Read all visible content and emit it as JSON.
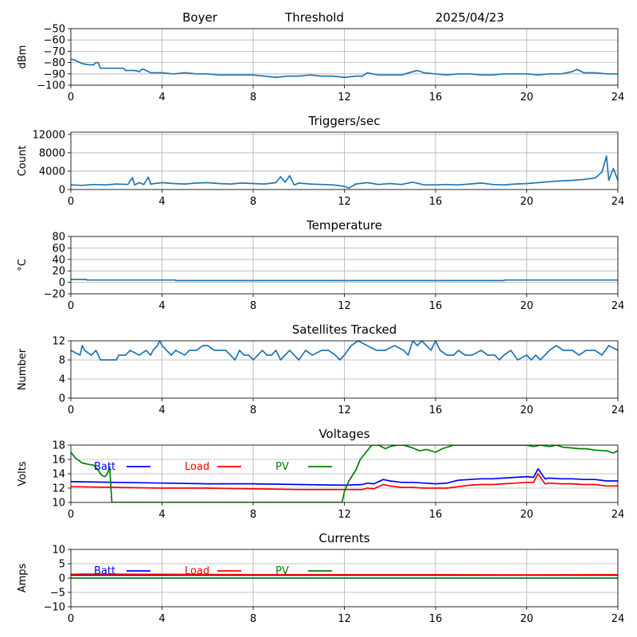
{
  "header": {
    "site": "Boyer",
    "label": "Threshold",
    "date": "2025/04/23"
  },
  "chart_data": [
    {
      "id": "threshold",
      "type": "line",
      "title": "",
      "ylabel": "dBm",
      "xlim": [
        0,
        24
      ],
      "ylim": [
        -100,
        -50
      ],
      "xticks": [
        "0",
        "4",
        "8",
        "12",
        "16",
        "20",
        "24"
      ],
      "yticks": [
        "−100",
        "−90",
        "−80",
        "−70",
        "−60",
        "−50"
      ],
      "grid": true,
      "series": [
        {
          "name": "",
          "color": "#1f77b4",
          "x": [
            0,
            0.2,
            0.5,
            0.8,
            1.0,
            1.1,
            1.2,
            1.3,
            2.0,
            2.3,
            2.4,
            2.8,
            3.0,
            3.1,
            3.2,
            3.5,
            3.8,
            4.0,
            4.5,
            5.0,
            5.5,
            6.0,
            6.5,
            7.0,
            7.5,
            8.0,
            8.5,
            9.0,
            9.5,
            10.0,
            10.5,
            11.0,
            11.5,
            12.0,
            12.5,
            12.8,
            13.0,
            13.5,
            14.0,
            14.5,
            15.0,
            15.2,
            15.5,
            16.0,
            16.5,
            17.0,
            17.5,
            18.0,
            18.5,
            19.0,
            19.5,
            20.0,
            20.5,
            21.0,
            21.5,
            22.0,
            22.2,
            22.5,
            23.0,
            23.5,
            24.0
          ],
          "y": [
            -77,
            -78,
            -81,
            -82,
            -82,
            -80,
            -80,
            -85,
            -85,
            -85,
            -87,
            -87,
            -88,
            -86,
            -86,
            -89,
            -89,
            -89,
            -90,
            -89,
            -90,
            -90,
            -91,
            -91,
            -91,
            -91,
            -92,
            -93,
            -92,
            -92,
            -91,
            -92,
            -92,
            -93,
            -92,
            -92,
            -89,
            -91,
            -91,
            -91,
            -88,
            -87,
            -89,
            -90,
            -91,
            -90,
            -90,
            -91,
            -91,
            -90,
            -90,
            -90,
            -91,
            -90,
            -90,
            -88,
            -86,
            -89,
            -89,
            -90,
            -90
          ]
        }
      ],
      "legend": []
    },
    {
      "id": "triggers",
      "type": "line",
      "title": "Triggers/sec",
      "ylabel": "Count",
      "xlim": [
        0,
        24
      ],
      "ylim": [
        0,
        12500
      ],
      "xticks": [
        "0",
        "4",
        "8",
        "12",
        "16",
        "20",
        "24"
      ],
      "yticks": [
        "0",
        "4000",
        "8000",
        "12000"
      ],
      "grid": true,
      "series": [
        {
          "name": "",
          "color": "#1f77b4",
          "x": [
            0,
            0.5,
            1.0,
            1.5,
            2.0,
            2.5,
            2.7,
            2.8,
            3.0,
            3.2,
            3.4,
            3.5,
            4.0,
            4.5,
            5.0,
            5.5,
            6.0,
            6.5,
            7.0,
            7.5,
            8.0,
            8.5,
            9.0,
            9.2,
            9.4,
            9.6,
            9.8,
            10.0,
            10.5,
            11.0,
            11.5,
            12.0,
            12.2,
            12.5,
            13.0,
            13.5,
            14.0,
            14.5,
            15.0,
            15.5,
            16.0,
            16.5,
            17.0,
            17.5,
            18.0,
            18.5,
            19.0,
            19.5,
            20.0,
            20.5,
            21.0,
            21.5,
            22.0,
            22.5,
            23.0,
            23.3,
            23.5,
            23.6,
            23.8,
            24.0
          ],
          "y": [
            1000,
            900,
            1100,
            1000,
            1200,
            1100,
            2600,
            1000,
            1500,
            1100,
            2700,
            1200,
            1500,
            1300,
            1200,
            1400,
            1500,
            1300,
            1200,
            1400,
            1300,
            1200,
            1500,
            2800,
            1600,
            3000,
            1000,
            1400,
            1200,
            1100,
            1000,
            700,
            300,
            1200,
            1500,
            1100,
            1300,
            1100,
            1600,
            1000,
            1000,
            1100,
            1000,
            1200,
            1400,
            1100,
            1000,
            1200,
            1300,
            1500,
            1700,
            1900,
            2000,
            2200,
            2500,
            3800,
            7300,
            2000,
            4600,
            2000
          ]
        }
      ],
      "legend": []
    },
    {
      "id": "temperature",
      "type": "line",
      "title": "Temperature",
      "ylabel": "°C",
      "xlim": [
        0,
        24
      ],
      "ylim": [
        -20,
        80
      ],
      "xticks": [
        "0",
        "4",
        "8",
        "12",
        "16",
        "20",
        "24"
      ],
      "yticks": [
        "−20",
        "0",
        "20",
        "40",
        "60",
        "80"
      ],
      "grid": true,
      "series": [
        {
          "name": "",
          "color": "#1f77b4",
          "x": [
            0,
            0.7,
            0.7,
            4.6,
            4.6,
            19.0,
            19.0,
            24.0
          ],
          "y": [
            5,
            5,
            4,
            4,
            3,
            3,
            4,
            4
          ]
        }
      ],
      "legend": []
    },
    {
      "id": "satellites",
      "type": "line",
      "title": "Satellites Tracked",
      "ylabel": "Number",
      "xlim": [
        0,
        24
      ],
      "ylim": [
        0,
        12
      ],
      "xticks": [
        "0",
        "4",
        "8",
        "12",
        "16",
        "20",
        "24"
      ],
      "yticks": [
        "0",
        "4",
        "8",
        "12"
      ],
      "grid": true,
      "series": [
        {
          "name": "",
          "color": "#1f77b4",
          "x": [
            0,
            0.4,
            0.5,
            0.6,
            0.9,
            1.1,
            1.3,
            2.0,
            2.1,
            2.4,
            2.6,
            3.0,
            3.3,
            3.5,
            3.6,
            3.8,
            3.9,
            4.0,
            4.2,
            4.4,
            4.6,
            5.0,
            5.2,
            5.5,
            5.8,
            6.0,
            6.3,
            6.8,
            7.0,
            7.2,
            7.4,
            7.6,
            7.8,
            8.0,
            8.2,
            8.4,
            8.6,
            8.8,
            9.0,
            9.2,
            9.4,
            9.6,
            9.8,
            10.0,
            10.3,
            10.6,
            11.0,
            11.3,
            11.6,
            11.8,
            12.0,
            12.3,
            12.6,
            13.0,
            13.4,
            13.8,
            14.2,
            14.6,
            14.8,
            15.0,
            15.2,
            15.4,
            15.6,
            15.8,
            16.0,
            16.2,
            16.5,
            16.8,
            17.0,
            17.3,
            17.6,
            18.0,
            18.3,
            18.6,
            18.8,
            19.0,
            19.3,
            19.6,
            20.0,
            20.2,
            20.4,
            20.6,
            21.0,
            21.3,
            21.6,
            22.0,
            22.3,
            22.6,
            23.0,
            23.3,
            23.6,
            24.0
          ],
          "y": [
            10,
            9,
            11,
            10,
            9,
            10,
            8,
            8,
            9,
            9,
            10,
            9,
            10,
            9,
            10,
            11,
            12,
            11,
            10,
            9,
            10,
            9,
            10,
            10,
            11,
            11,
            10,
            10,
            9,
            8,
            10,
            9,
            9,
            8,
            9,
            10,
            9,
            9,
            10,
            8,
            9,
            10,
            9,
            8,
            10,
            9,
            10,
            10,
            9,
            8,
            9,
            11,
            12,
            11,
            10,
            10,
            11,
            10,
            9,
            12,
            11,
            12,
            11,
            10,
            12,
            10,
            9,
            9,
            10,
            9,
            9,
            10,
            9,
            9,
            8,
            9,
            10,
            8,
            9,
            8,
            9,
            8,
            10,
            11,
            10,
            10,
            9,
            10,
            10,
            9,
            11,
            10
          ]
        }
      ],
      "legend": []
    },
    {
      "id": "voltages",
      "type": "line",
      "title": "Voltages",
      "ylabel": "Volts",
      "xlim": [
        0,
        24
      ],
      "ylim": [
        10,
        18
      ],
      "xticks": [
        "0",
        "4",
        "8",
        "12",
        "16",
        "20",
        "24"
      ],
      "yticks": [
        "10",
        "12",
        "14",
        "16",
        "18"
      ],
      "grid": true,
      "series": [
        {
          "name": "Batt",
          "color": "#0000ff",
          "x": [
            0,
            2,
            4,
            6,
            8,
            10,
            12,
            12.8,
            13.0,
            13.3,
            13.7,
            14.0,
            14.5,
            15.0,
            15.5,
            16.0,
            16.5,
            17.0,
            17.5,
            18.0,
            18.5,
            19.0,
            19.5,
            20.0,
            20.3,
            20.5,
            20.8,
            21.0,
            21.5,
            22.0,
            22.5,
            23.0,
            23.5,
            24.0
          ],
          "y": [
            12.9,
            12.8,
            12.7,
            12.6,
            12.6,
            12.5,
            12.4,
            12.5,
            12.7,
            12.6,
            13.2,
            13.0,
            12.8,
            12.8,
            12.7,
            12.6,
            12.7,
            13.1,
            13.2,
            13.3,
            13.3,
            13.4,
            13.5,
            13.6,
            13.5,
            14.7,
            13.3,
            13.4,
            13.3,
            13.3,
            13.2,
            13.2,
            13.0,
            13.0
          ]
        },
        {
          "name": "Load",
          "color": "#ff0000",
          "x": [
            0,
            2,
            4,
            6,
            8,
            10,
            12,
            12.8,
            13.0,
            13.3,
            13.7,
            14.0,
            14.5,
            15.0,
            15.5,
            16.0,
            16.5,
            17.0,
            17.5,
            18.0,
            18.5,
            19.0,
            19.5,
            20.0,
            20.3,
            20.5,
            20.8,
            21.0,
            21.5,
            22.0,
            22.5,
            23.0,
            23.5,
            24.0
          ],
          "y": [
            12.2,
            12.1,
            12.0,
            12.0,
            11.9,
            11.8,
            11.8,
            11.8,
            12.0,
            11.9,
            12.5,
            12.3,
            12.1,
            12.1,
            12.0,
            12.0,
            12.0,
            12.2,
            12.4,
            12.5,
            12.5,
            12.6,
            12.7,
            12.8,
            12.8,
            14.0,
            12.6,
            12.7,
            12.6,
            12.6,
            12.5,
            12.5,
            12.3,
            12.3
          ]
        },
        {
          "name": "PV",
          "color": "#008000",
          "x": [
            0,
            0.2,
            0.5,
            0.8,
            1.0,
            1.2,
            1.3,
            1.4,
            1.5,
            1.6,
            1.7,
            1.8,
            11.9,
            12.0,
            12.2,
            12.5,
            12.7,
            13.0,
            13.2,
            13.5,
            13.8,
            14.0,
            14.3,
            14.6,
            15.0,
            15.3,
            15.6,
            16.0,
            16.3,
            16.6,
            16.8,
            20.0,
            20.3,
            20.6,
            21.0,
            21.3,
            21.6,
            22.0,
            22.3,
            22.6,
            23.0,
            23.5,
            23.8,
            24.0
          ],
          "y": [
            17.0,
            16.2,
            15.5,
            15.3,
            15.2,
            14.5,
            14.0,
            13.7,
            13.6,
            14.0,
            15.0,
            9.6,
            9.6,
            11.5,
            13.0,
            14.5,
            16.0,
            17.2,
            18.0,
            18.3,
            17.5,
            17.8,
            18.4,
            18.0,
            17.6,
            17.2,
            17.4,
            17.0,
            17.5,
            17.8,
            18.2,
            18.2,
            17.8,
            18.3,
            17.8,
            18.1,
            17.7,
            17.6,
            17.5,
            17.5,
            17.3,
            17.2,
            16.9,
            17.2
          ]
        }
      ],
      "legend": [
        "Batt",
        "Load",
        "PV"
      ]
    },
    {
      "id": "currents",
      "type": "line",
      "title": "Currents",
      "ylabel": "Amps",
      "xlim": [
        0,
        24
      ],
      "ylim": [
        -10,
        10
      ],
      "xticks": [
        "0",
        "4",
        "8",
        "12",
        "16",
        "20",
        "24"
      ],
      "yticks": [
        "−10",
        "−5",
        "0",
        "5",
        "10"
      ],
      "grid": true,
      "series": [
        {
          "name": "Batt",
          "color": "#0000ff",
          "x": [
            0,
            24
          ],
          "y": [
            1.0,
            1.0
          ]
        },
        {
          "name": "Load",
          "color": "#ff0000",
          "x": [
            0,
            0.5,
            4,
            8,
            12,
            16,
            20,
            24
          ],
          "y": [
            1.3,
            1.4,
            1.3,
            1.2,
            1.2,
            1.2,
            1.1,
            1.2
          ]
        },
        {
          "name": "PV",
          "color": "#008000",
          "x": [
            0,
            24
          ],
          "y": [
            0.0,
            0.0
          ]
        }
      ],
      "legend": [
        "Batt",
        "Load",
        "PV"
      ]
    }
  ]
}
